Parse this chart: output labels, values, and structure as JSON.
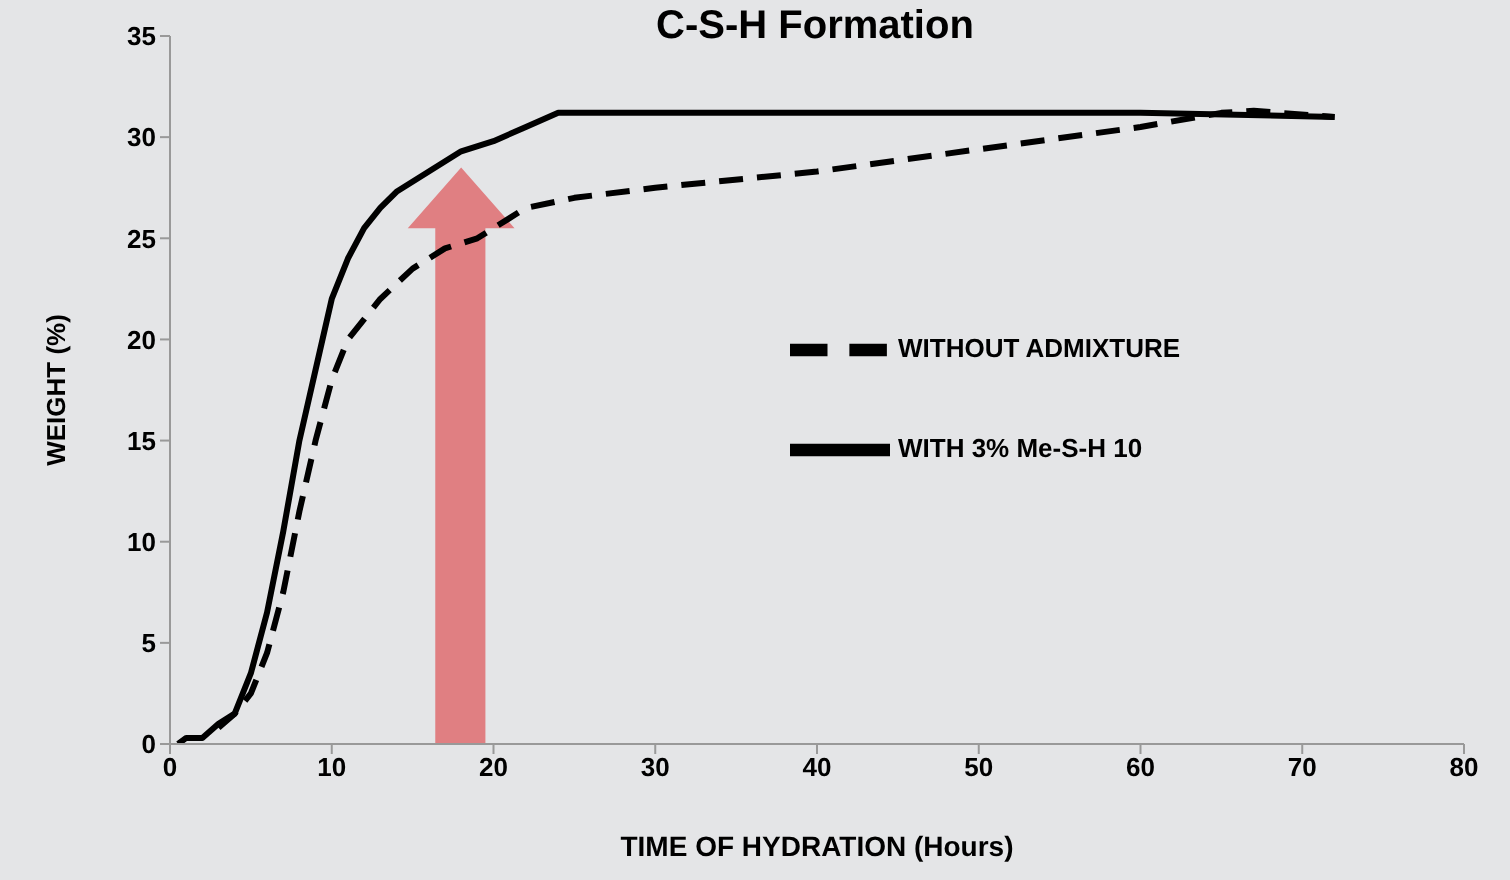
{
  "chart_data": {
    "type": "line",
    "title": "C-S-H Formation",
    "xlabel": "TIME OF HYDRATION (Hours)",
    "ylabel": "WEIGHT (%)",
    "xlim": [
      0,
      80
    ],
    "xticks": [
      0,
      10,
      20,
      30,
      40,
      50,
      60,
      70,
      80
    ],
    "ylim": [
      0,
      35
    ],
    "yticks": [
      0,
      5,
      10,
      15,
      20,
      25,
      30,
      35
    ],
    "grid": false,
    "legend": "right",
    "marker": "none",
    "series": [
      {
        "name": "WITHOUT ADMIXTURE",
        "color": "#000000",
        "line_style": "dashed",
        "x": [
          3,
          4,
          5,
          6,
          7,
          8,
          9,
          10,
          11,
          13,
          15,
          17,
          19,
          20,
          22,
          25,
          30,
          40,
          50,
          60,
          65,
          67,
          72
        ],
        "values": [
          0.8,
          1.5,
          2.5,
          4.5,
          7.5,
          11.5,
          15,
          18,
          20,
          22,
          23.5,
          24.5,
          25,
          25.5,
          26.5,
          27,
          27.5,
          28.3,
          29.4,
          30.5,
          31.2,
          31.3,
          31
        ]
      },
      {
        "name": "WITH 3% Me-S-H 10",
        "color": "#000000",
        "line_style": "solid",
        "x": [
          0.5,
          1,
          2,
          3,
          4,
          5,
          6,
          7,
          8,
          9,
          10,
          11,
          12,
          13,
          14,
          16,
          18,
          20,
          22,
          24,
          60,
          72
        ],
        "values": [
          0,
          0.3,
          0.3,
          1,
          1.5,
          3.5,
          6.5,
          10.5,
          15,
          18.5,
          22,
          24,
          25.5,
          26.5,
          27.3,
          28.3,
          29.3,
          29.8,
          30.5,
          31.2,
          31.2,
          31
        ]
      }
    ]
  }
}
